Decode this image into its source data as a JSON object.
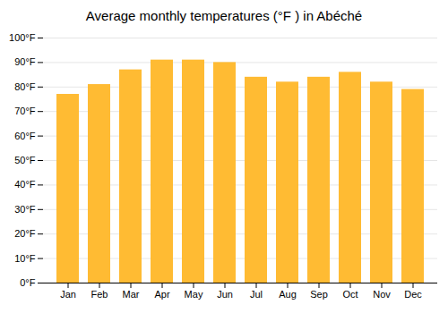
{
  "chart_data": {
    "type": "bar",
    "title": "Average monthly temperatures (°F ) in Abéché",
    "categories": [
      "Jan",
      "Feb",
      "Mar",
      "Apr",
      "May",
      "Jun",
      "Jul",
      "Aug",
      "Sep",
      "Oct",
      "Nov",
      "Dec"
    ],
    "values": [
      77,
      81,
      87,
      91,
      91,
      90,
      84,
      82,
      84,
      86,
      82,
      79
    ],
    "color": "#FFBB33",
    "ylim": [
      0,
      100
    ],
    "yticks": [
      {
        "value": 0,
        "label": "0°F"
      },
      {
        "value": 10,
        "label": "10°F"
      },
      {
        "value": 20,
        "label": "20°F"
      },
      {
        "value": 30,
        "label": "30°F"
      },
      {
        "value": 40,
        "label": "40°F"
      },
      {
        "value": 50,
        "label": "50°F"
      },
      {
        "value": 60,
        "label": "60°F"
      },
      {
        "value": 70,
        "label": "70°F"
      },
      {
        "value": 80,
        "label": "80°F"
      },
      {
        "value": 90,
        "label": "90°F"
      },
      {
        "value": 100,
        "label": "100°F"
      }
    ],
    "grid": true
  }
}
